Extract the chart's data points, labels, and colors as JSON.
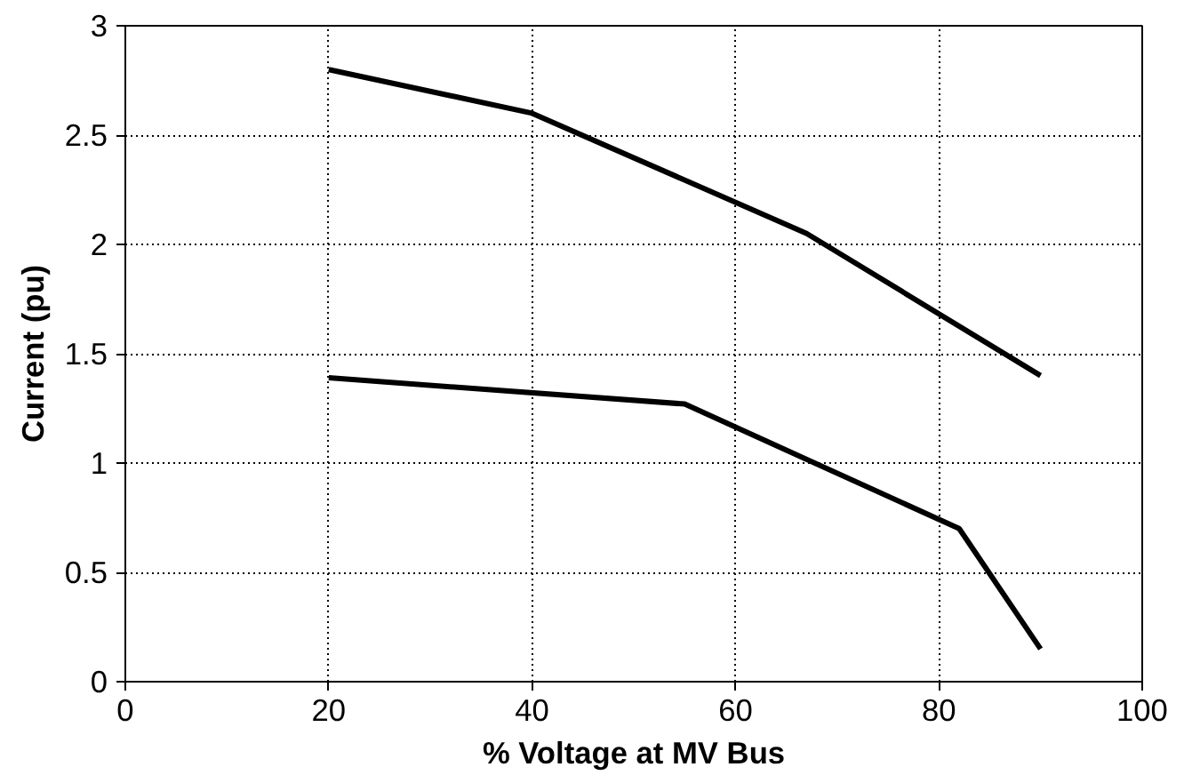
{
  "chart_data": {
    "type": "line",
    "xlabel": "% Voltage at MV Bus",
    "ylabel": "Current (pu)",
    "series": [
      {
        "color": "#000000",
        "x": [
          20,
          40,
          67,
          90
        ],
        "values": [
          2.8,
          2.6,
          2.05,
          1.4
        ]
      },
      {
        "color": "#000000",
        "x": [
          20,
          55,
          82,
          90
        ],
        "values": [
          1.39,
          1.27,
          0.7,
          0.15
        ]
      }
    ],
    "xlim": [
      0,
      100
    ],
    "xticks": [
      0,
      20,
      40,
      60,
      80,
      100
    ],
    "ylim": [
      0,
      3
    ],
    "yticks": [
      0,
      0.5,
      1,
      1.5,
      2,
      2.5,
      3
    ],
    "grid": true,
    "marker": "none",
    "line_style": "solid"
  }
}
